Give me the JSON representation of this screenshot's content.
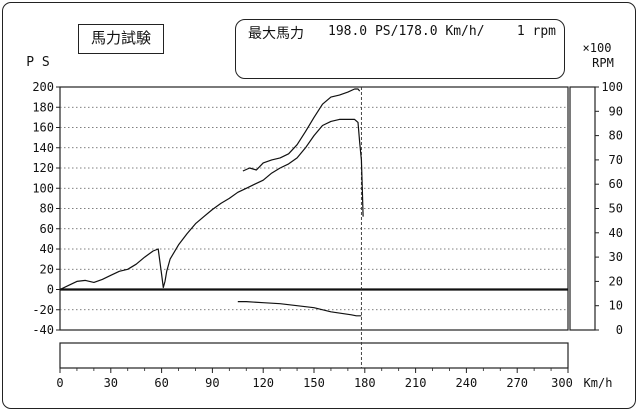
{
  "header": {
    "title": "馬力試験",
    "max_label": "最大馬力",
    "max_value": "198.0 PS/178.0 Km/h/",
    "max_rpm": "1 rpm"
  },
  "chart_data": {
    "type": "line",
    "title": "馬力試験",
    "left_axis": {
      "label": "P S",
      "ylim": [
        -40,
        200
      ],
      "ticks": [
        -40,
        -20,
        0,
        20,
        40,
        60,
        80,
        100,
        120,
        140,
        160,
        180,
        200
      ]
    },
    "right_axis": {
      "label": "×100 RPM",
      "ylim": [
        0,
        100
      ],
      "ticks": [
        0,
        10,
        20,
        30,
        40,
        50,
        60,
        70,
        80,
        90,
        100
      ]
    },
    "x_axis": {
      "label": "Km/h",
      "xlim": [
        0,
        300
      ],
      "ticks": [
        0,
        30,
        60,
        90,
        120,
        150,
        180,
        210,
        240,
        270,
        300
      ]
    },
    "grid": true,
    "marker": {
      "x": 178,
      "style": "dashed"
    },
    "series": [
      {
        "x": [
          0,
          5,
          10,
          15,
          20,
          25,
          30,
          35,
          40,
          45,
          50,
          55,
          58,
          60,
          61,
          62,
          63,
          65,
          70,
          75,
          80,
          85,
          90,
          95,
          100,
          105,
          110,
          115,
          120,
          125,
          130,
          135,
          140,
          145,
          150,
          155,
          160,
          165,
          170,
          174,
          176,
          177,
          178,
          178.5,
          179
        ],
        "y": [
          0,
          4,
          8,
          9,
          7,
          10,
          14,
          18,
          20,
          25,
          32,
          38,
          40,
          15,
          2,
          8,
          18,
          30,
          44,
          55,
          65,
          72,
          79,
          85,
          90,
          96,
          100,
          104,
          108,
          115,
          120,
          124,
          130,
          140,
          152,
          162,
          166,
          168,
          168,
          168,
          165,
          145,
          128,
          100,
          72
        ]
      },
      {
        "x": [
          108,
          112,
          116,
          120,
          125,
          130,
          135,
          140,
          145,
          150,
          155,
          160,
          165,
          170,
          174,
          176,
          177
        ],
        "y": [
          117,
          120,
          118,
          125,
          128,
          130,
          134,
          143,
          156,
          170,
          183,
          190,
          192,
          195,
          198,
          198,
          196
        ]
      },
      {
        "x": [
          105,
          110,
          120,
          130,
          140,
          150,
          160,
          168,
          172,
          175,
          177,
          178
        ],
        "y": [
          -12,
          -12,
          -13,
          -14,
          -16,
          -18,
          -22,
          -24,
          -25,
          -26,
          -26,
          -26
        ]
      }
    ]
  }
}
